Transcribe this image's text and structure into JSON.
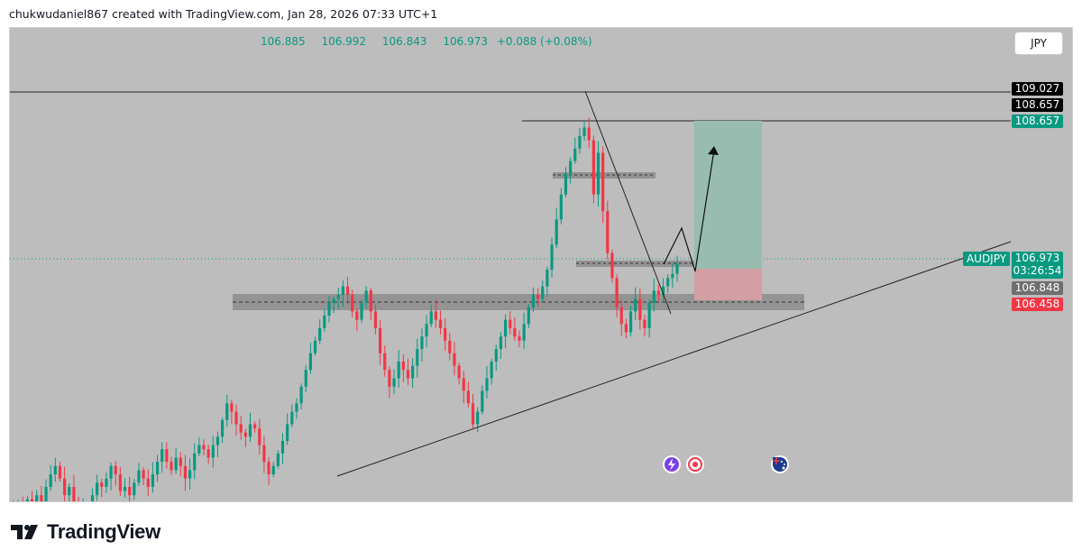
{
  "header": {
    "attribution": "chukwudaniel867 created with TradingView.com, Jan 28, 2026 07:33 UTC+1"
  },
  "toolbar": {
    "currency": "JPY"
  },
  "ohlc": {
    "open": "106.885",
    "high": "106.992",
    "low": "106.843",
    "close": "106.973",
    "change": "+0.088 (+0.08%)"
  },
  "price_axis": {
    "high_level": "109.027",
    "target_level_dark": "108.657",
    "target_level_green": "108.657",
    "symbol": "AUDJPY",
    "last_price": "106.973",
    "countdown": "03:26:54",
    "entry_level": "106.848",
    "stop_level": "106.458"
  },
  "footer": {
    "brand": "TradingView"
  },
  "colors": {
    "up": "#089981",
    "down": "#f23645",
    "background": "#bdbdbd",
    "target_zone": "#98bdb0",
    "stop_zone": "#d39ea4"
  },
  "chart_data": {
    "type": "candlestick",
    "symbol": "AUDJPY",
    "currency": "JPY",
    "last": {
      "open": 106.885,
      "high": 106.992,
      "low": 106.843,
      "close": 106.973
    },
    "levels": {
      "resistance": 109.027,
      "target": 108.657,
      "entry": 106.848,
      "stop": 106.458
    },
    "closes": [
      104.05,
      104.1,
      104.0,
      104.15,
      104.05,
      104.2,
      104.1,
      104.3,
      104.45,
      104.55,
      104.4,
      104.2,
      104.3,
      104.1,
      103.95,
      104.05,
      104.0,
      104.2,
      104.35,
      104.3,
      104.4,
      104.55,
      104.45,
      104.25,
      104.3,
      104.2,
      104.35,
      104.5,
      104.4,
      104.3,
      104.45,
      104.6,
      104.75,
      104.6,
      104.5,
      104.65,
      104.55,
      104.4,
      104.5,
      104.7,
      104.8,
      104.75,
      104.65,
      104.8,
      104.9,
      105.1,
      105.3,
      105.2,
      105.05,
      104.95,
      104.9,
      105.05,
      105.0,
      104.8,
      104.6,
      104.45,
      104.55,
      104.7,
      104.85,
      105.05,
      105.2,
      105.3,
      105.5,
      105.7,
      105.9,
      106.05,
      106.2,
      106.35,
      106.5,
      106.55,
      106.6,
      106.7,
      106.6,
      106.4,
      106.3,
      106.5,
      106.65,
      106.4,
      106.2,
      105.9,
      105.7,
      105.5,
      105.6,
      105.8,
      105.7,
      105.6,
      105.75,
      105.95,
      106.1,
      106.25,
      106.4,
      106.3,
      106.2,
      106.05,
      105.9,
      105.75,
      105.6,
      105.45,
      105.3,
      105.05,
      105.2,
      105.45,
      105.6,
      105.8,
      105.95,
      106.1,
      106.3,
      106.2,
      106.1,
      106.05,
      106.25,
      106.45,
      106.6,
      106.55,
      106.7,
      106.9,
      107.2,
      107.5,
      107.8,
      108.05,
      108.2,
      108.35,
      108.5,
      108.6,
      108.45,
      107.8,
      108.3,
      107.6,
      107.1,
      106.8,
      106.45,
      106.25,
      106.15,
      106.4,
      106.55,
      106.3,
      106.2,
      106.5,
      106.65,
      106.6,
      106.7,
      106.8,
      106.85,
      106.97
    ]
  }
}
